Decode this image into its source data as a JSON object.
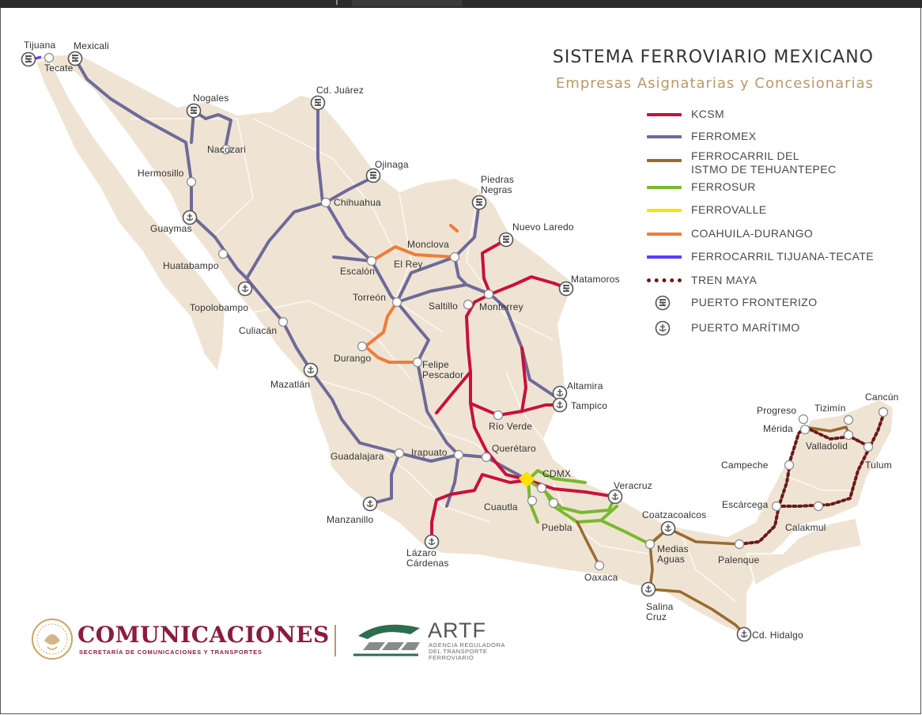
{
  "header": {
    "title": "SISTEMA FERROVIARIO MEXICANO",
    "subtitle": "Empresas Asignatarias y Concesionarias"
  },
  "legend": [
    {
      "label": "KCSM",
      "color": "#c8103e",
      "kind": "line"
    },
    {
      "label": "FERROMEX",
      "color": "#6e6a99",
      "kind": "line"
    },
    {
      "label": "FERROCARRIL DEL\nISTMO DE TEHUANTEPEC",
      "color": "#9b6a2f",
      "kind": "line"
    },
    {
      "label": "FERROSUR",
      "color": "#7ab82e",
      "kind": "line"
    },
    {
      "label": "FERROVALLE",
      "color": "#ffe100",
      "kind": "line"
    },
    {
      "label": "COAHUILA-DURANGO",
      "color": "#f07c3a",
      "kind": "line"
    },
    {
      "label": "FERROCARRIL TIJUANA-TECATE",
      "color": "#5a3bff",
      "kind": "line"
    },
    {
      "label": "TREN MAYA",
      "color": "#6b1a1a",
      "kind": "dotted"
    },
    {
      "label": "PUERTO FRONTERIZO",
      "kind": "border-icon"
    },
    {
      "label": "PUERTO MARÍTIMO",
      "kind": "sea-icon"
    }
  ],
  "cities": [
    "Tijuana",
    "Tecate",
    "Mexicali",
    "Nogales",
    "Nacozari",
    "Cd. Juárez",
    "Hermosillo",
    "Ojinaga",
    "Piedras Negras",
    "Guaymas",
    "Chihuahua",
    "Nuevo Laredo",
    "Huatabampo",
    "Monclova",
    "El Rey",
    "Escalón",
    "Matamoros",
    "Topolobampo",
    "Torreón",
    "Saltillo",
    "Monterrey",
    "Culiacán",
    "Durango",
    "Felipe Pescador",
    "Altamira",
    "Mazatlán",
    "Tampico",
    "Río Verde",
    "Progreso",
    "Tizimín",
    "Cancún",
    "Mérida",
    "Valladolid",
    "Querétaro",
    "Guadalajara",
    "Irapuato",
    "CDMX",
    "Campeche",
    "Tulum",
    "Veracruz",
    "Cuautla",
    "Escárcega",
    "Manzanillo",
    "Puebla",
    "Coatzacoalcos",
    "Calakmul",
    "Medias Aguas",
    "Palenque",
    "Lázaro Cárdenas",
    "Oaxaca",
    "Salina Cruz",
    "Cd. Hidalgo"
  ],
  "branding": {
    "agency": "COMUNICACIONES",
    "agency_sub": "SECRETARÍA DE COMUNICACIONES Y TRANSPORTES",
    "regulator": "ARTF",
    "regulator_sub": "AGENCIA REGULADORA DEL TRANSPORTE FERROVIARIO"
  }
}
